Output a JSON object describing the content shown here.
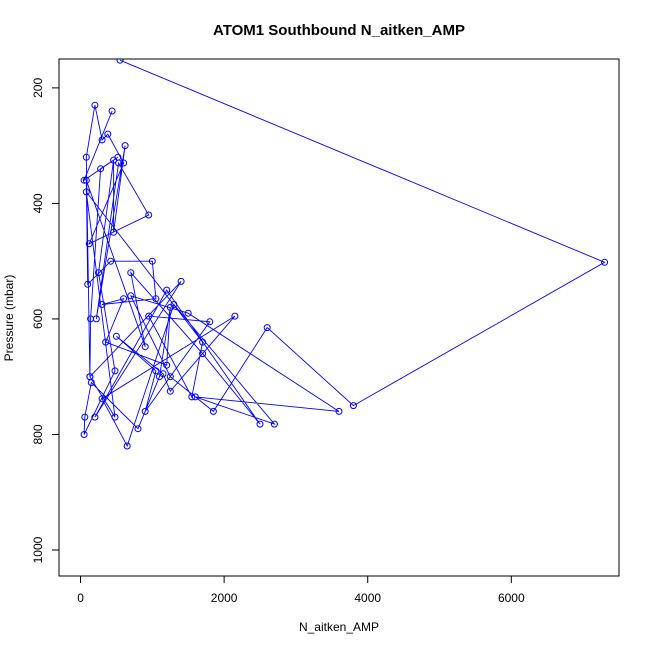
{
  "chart_data": {
    "type": "line",
    "title": "ATOM1 Southbound N_aitken_AMP",
    "xlabel": "N_aitken_AMP",
    "ylabel": "Pressure (mbar)",
    "xlim": [
      -300,
      7500
    ],
    "ylim": [
      1045,
      150
    ],
    "y_reversed": true,
    "grid": false,
    "legend": "none",
    "x_ticks": [
      0,
      2000,
      4000,
      6000
    ],
    "y_ticks": [
      200,
      400,
      600,
      800,
      1000
    ],
    "colors": {
      "series": "#0000ff",
      "axis": "#000000"
    },
    "series": [
      {
        "x": [
          550,
          7300,
          3800,
          2600,
          1850,
          1250,
          700,
          1500,
          3600,
          1600,
          2700,
          1300,
          650,
          300,
          2150,
          1250,
          1150,
          500,
          1050,
          900,
          1800,
          950,
          1550,
          1700,
          80,
          480,
          130,
          1400,
          200,
          1200,
          2500,
          1700,
          700,
          900,
          80,
          100,
          420,
          1000,
          1050,
          300,
          600,
          350,
          1200,
          1250,
          1100,
          800,
          150,
          60,
          50,
          480,
          250,
          460,
          460,
          620,
          220,
          530,
          950,
          120,
          600,
          380,
          300,
          200,
          80,
          130,
          140,
          280,
          520,
          50,
          440
        ],
        "y": [
          152,
          502,
          750,
          615,
          760,
          700,
          560,
          590,
          760,
          735,
          782,
          575,
          820,
          738,
          595,
          725,
          695,
          630,
          690,
          760,
          605,
          595,
          735,
          640,
          380,
          770,
          700,
          535,
          770,
          550,
          782,
          660,
          520,
          648,
          360,
          540,
          500,
          500,
          565,
          575,
          565,
          640,
          680,
          580,
          700,
          790,
          710,
          770,
          800,
          690,
          520,
          325,
          450,
          300,
          600,
          330,
          420,
          470,
          330,
          280,
          290,
          230,
          320,
          700,
          600,
          340,
          320,
          360,
          240
        ]
      }
    ]
  }
}
